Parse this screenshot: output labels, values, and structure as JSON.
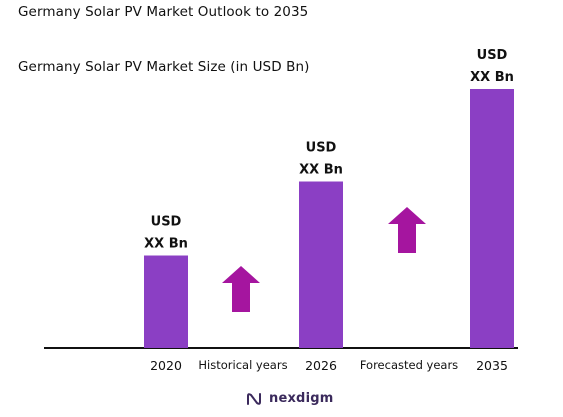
{
  "header": {
    "title": "Germany Solar PV Market Outlook to 2035"
  },
  "chart_data": {
    "type": "bar",
    "title": "Germany Solar PV Market Size (in USD Bn)",
    "categories": [
      "2020",
      "2026",
      "2035"
    ],
    "values": [
      1.0,
      1.8,
      2.8
    ],
    "data_labels": [
      {
        "line1": "USD",
        "line2": "XX Bn"
      },
      {
        "line1": "USD",
        "line2": "XX Bn"
      },
      {
        "line1": "USD",
        "line2": "XX Bn"
      }
    ],
    "annotations": [
      "Historical years",
      "Forecasted years"
    ],
    "xlabel": "",
    "ylabel": "",
    "ylim": [
      0,
      3
    ],
    "grid": false,
    "bar_color": "#8b3fc4",
    "arrow_color": "#a5159f",
    "axis_color": "#111111"
  },
  "branding": {
    "logo_text": "nexdigm",
    "logo_icon": "nexdigm-logo-icon",
    "logo_color": "#3b2a5c"
  }
}
